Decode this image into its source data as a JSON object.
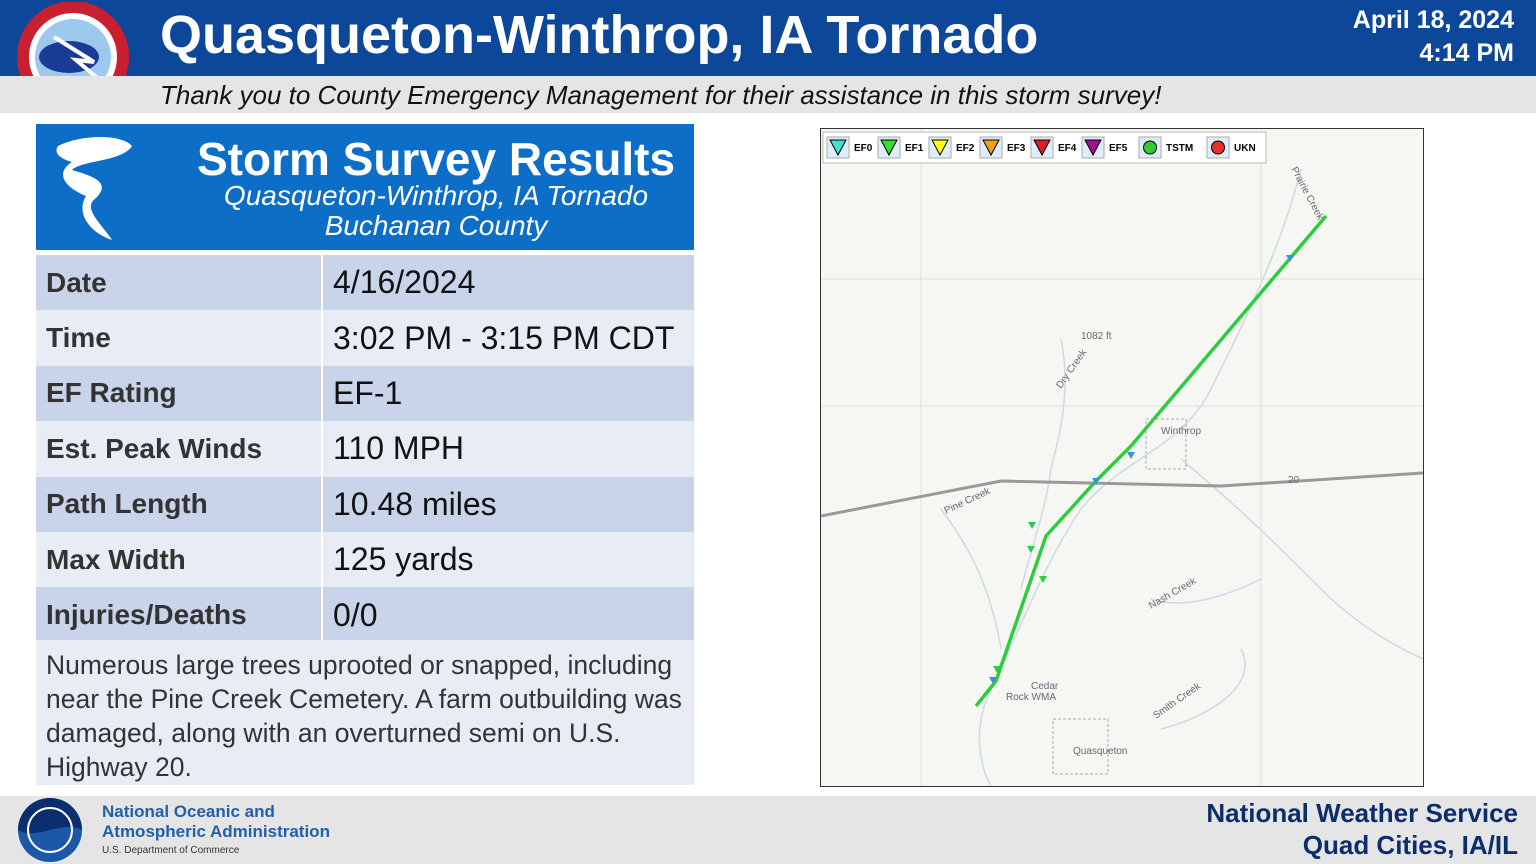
{
  "header": {
    "title": "Quasqueton-Winthrop, IA Tornado",
    "date": "April 18, 2024",
    "time": "4:14 PM",
    "subtitle": "Thank you to County Emergency Management for their assistance in this storm survey!"
  },
  "panel": {
    "title": "Storm Survey Results",
    "event": "Quasqueton-Winthrop, IA Tornado",
    "county": "Buchanan County"
  },
  "table": {
    "rows": [
      [
        "Date",
        "4/16/2024"
      ],
      [
        "Time",
        "3:02 PM - 3:15 PM CDT"
      ],
      [
        "EF Rating",
        "EF-1"
      ],
      [
        "Est. Peak Winds",
        "110 MPH"
      ],
      [
        "Path Length",
        "10.48 miles"
      ],
      [
        "Max Width",
        "125 yards"
      ],
      [
        "Injuries/Deaths",
        "0/0"
      ]
    ],
    "notes": "Numerous large trees uprooted or snapped, including near the Pine Creek Cemetery. A farm outbuilding was damaged, along with an overturned semi on U.S. Highway 20."
  },
  "map": {
    "legend": [
      "EF0",
      "EF1",
      "EF2",
      "EF3",
      "EF4",
      "EF5",
      "TSTM",
      "UKN"
    ],
    "labels": [
      "Prairie Creek",
      "1082 ft",
      "Dry Creek",
      "Winthrop",
      "20",
      "Pine Creek",
      "Nash Creek",
      "Cedar",
      "Rock WMA",
      "Smith Creek",
      "Quasqueton"
    ]
  },
  "footer": {
    "agency": [
      "National Oceanic and",
      "Atmospheric Administration"
    ],
    "department": "U.S. Department of Commerce",
    "office": [
      "National Weather Service",
      "Quad Cities, IA/IL"
    ]
  }
}
